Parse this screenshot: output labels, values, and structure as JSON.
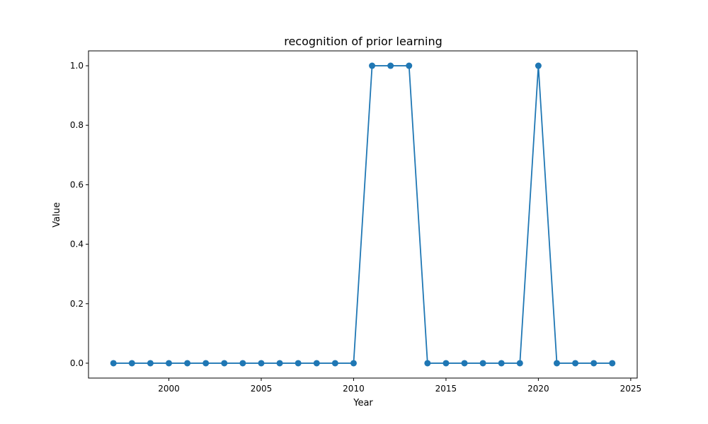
{
  "chart_data": {
    "type": "line",
    "title": "recognition of prior learning",
    "xlabel": "Year",
    "ylabel": "Value",
    "xlim": [
      1995.65,
      2025.35
    ],
    "ylim": [
      -0.05,
      1.05
    ],
    "xticks": [
      2000,
      2005,
      2010,
      2015,
      2020,
      2025
    ],
    "xtick_labels": [
      "2000",
      "2005",
      "2010",
      "2015",
      "2020",
      "2025"
    ],
    "yticks": [
      0.0,
      0.2,
      0.4,
      0.6,
      0.8,
      1.0
    ],
    "ytick_labels": [
      "0.0",
      "0.2",
      "0.4",
      "0.6",
      "0.8",
      "1.0"
    ],
    "grid": false,
    "color": "#1f77b4",
    "x": [
      1997,
      1998,
      1999,
      2000,
      2001,
      2002,
      2003,
      2004,
      2005,
      2006,
      2007,
      2008,
      2009,
      2010,
      2011,
      2012,
      2013,
      2014,
      2015,
      2016,
      2017,
      2018,
      2019,
      2020,
      2021,
      2022,
      2023,
      2024
    ],
    "series": [
      {
        "values": [
          0,
          0,
          0,
          0,
          0,
          0,
          0,
          0,
          0,
          0,
          0,
          0,
          0,
          0,
          1,
          1,
          1,
          0,
          0,
          0,
          0,
          0,
          0,
          1,
          0,
          0,
          0,
          0
        ]
      }
    ]
  }
}
